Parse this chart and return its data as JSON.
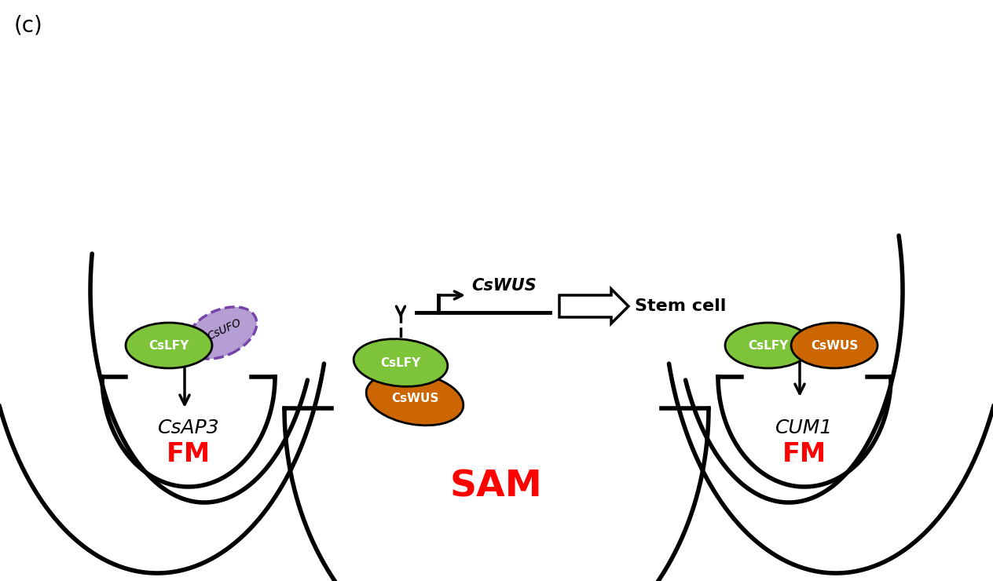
{
  "bg_color": "#ffffff",
  "panel_label": "(c)",
  "sam_label": "SAM",
  "sam_color": "#ff0000",
  "fm_label": "FM",
  "fm_color": "#ff0000",
  "cslfy_color": "#7dc43a",
  "cswus_color": "#cc6600",
  "csufo_color": "#b49ed4",
  "csufo_border": "#7744aa",
  "green_label": "CsLFY",
  "orange_label": "CsWUS",
  "purple_label": "CsUFO",
  "csap3_label": "CsAP3",
  "cswus_gene_label": "CsWUS",
  "cum1_label": "CUM1",
  "stem_cell_label": "Stem cell",
  "lw": 3.5
}
